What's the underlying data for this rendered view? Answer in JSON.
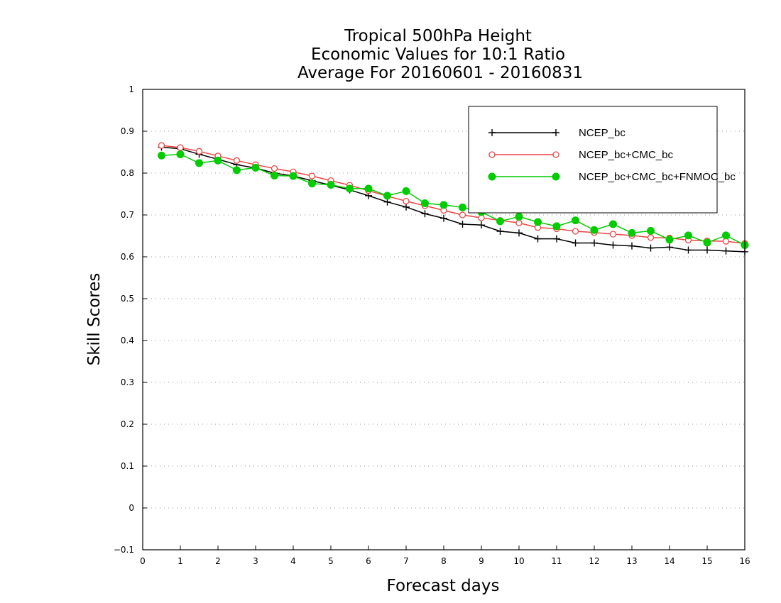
{
  "chart_data": {
    "type": "line",
    "title": [
      "Tropical 500hPa Height",
      "Economic Values for 10:1 Ratio",
      "Average For 20160601 - 20160831"
    ],
    "xlabel": "Forecast days",
    "ylabel": "Skill Scores",
    "xlim": [
      0,
      16
    ],
    "ylim": [
      -0.1,
      1
    ],
    "xticks": [
      "0",
      "1",
      "2",
      "3",
      "4",
      "5",
      "6",
      "7",
      "8",
      "9",
      "10",
      "11",
      "12",
      "13",
      "14",
      "15",
      "16"
    ],
    "yticks": [
      "−0.1",
      "0",
      "0.1",
      "0.2",
      "0.3",
      "0.4",
      "0.5",
      "0.6",
      "0.7",
      "0.8",
      "0.9",
      "1"
    ],
    "ytick_values": [
      -0.1,
      0,
      0.1,
      0.2,
      0.3,
      0.4,
      0.5,
      0.6,
      0.7,
      0.8,
      0.9,
      1
    ],
    "grid": "horizontal dotted",
    "legend_position": "top-right",
    "x": [
      0.5,
      1,
      1.5,
      2,
      2.5,
      3,
      3.5,
      4,
      4.5,
      5,
      5.5,
      6,
      6.5,
      7,
      7.5,
      8,
      8.5,
      9,
      9.5,
      10,
      10.5,
      11,
      11.5,
      12,
      12.5,
      13,
      13.5,
      14,
      14.5,
      15,
      15.5,
      16
    ],
    "series": [
      {
        "name": "NCEP_bc",
        "color": "#000000",
        "marker": "plus",
        "values": [
          0.862,
          0.858,
          0.845,
          0.833,
          0.82,
          0.812,
          0.8,
          0.793,
          0.782,
          0.771,
          0.76,
          0.746,
          0.731,
          0.719,
          0.703,
          0.692,
          0.678,
          0.676,
          0.661,
          0.657,
          0.643,
          0.643,
          0.633,
          0.633,
          0.628,
          0.626,
          0.621,
          0.623,
          0.616,
          0.616,
          0.614,
          0.612
        ]
      },
      {
        "name": "NCEP_bc+CMC_bc",
        "color": "#ee4444",
        "marker": "open-circle",
        "values": [
          0.866,
          0.861,
          0.852,
          0.841,
          0.83,
          0.82,
          0.811,
          0.803,
          0.793,
          0.782,
          0.771,
          0.758,
          0.745,
          0.733,
          0.722,
          0.711,
          0.7,
          0.693,
          0.687,
          0.681,
          0.67,
          0.667,
          0.661,
          0.658,
          0.654,
          0.651,
          0.646,
          0.645,
          0.64,
          0.638,
          0.637,
          0.632
        ]
      },
      {
        "name": "NCEP_bc+CMC_bc+FNMOC_bc",
        "color": "#00cc00",
        "marker": "filled-circle",
        "values": [
          0.842,
          0.845,
          0.824,
          0.83,
          0.807,
          0.813,
          0.794,
          0.793,
          0.775,
          0.772,
          0.763,
          0.763,
          0.746,
          0.757,
          0.728,
          0.724,
          0.718,
          0.707,
          0.685,
          0.696,
          0.683,
          0.673,
          0.687,
          0.664,
          0.678,
          0.657,
          0.662,
          0.641,
          0.651,
          0.634,
          0.651,
          0.628
        ]
      }
    ]
  }
}
